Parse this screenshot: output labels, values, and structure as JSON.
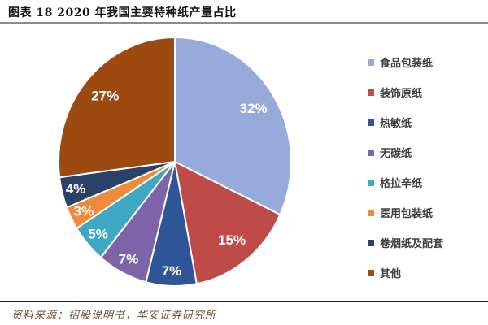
{
  "header": {
    "title": "图表  18 2020 年我国主要特种纸产量占比"
  },
  "footer": {
    "source": "资料来源：招股说明书，华安证券研究所"
  },
  "chart_data": {
    "type": "pie",
    "title": "2020 年我国主要特种纸产量占比",
    "start_angle_deg": 0,
    "direction": "clockwise",
    "legend_position": "right",
    "label_color": "#ffffff",
    "slice_border_color": "#ffffff",
    "slices": [
      {
        "label": "食品包装纸",
        "value": 32,
        "pct_label": "32%",
        "color": "#96abdb"
      },
      {
        "label": "装饰原纸",
        "value": 15,
        "pct_label": "15%",
        "color": "#bf4b48"
      },
      {
        "label": "热敏纸",
        "value": 7,
        "pct_label": "7%",
        "color": "#2e5597"
      },
      {
        "label": "无碳纸",
        "value": 7,
        "pct_label": "7%",
        "color": "#7d64a8"
      },
      {
        "label": "格拉辛纸",
        "value": 5,
        "pct_label": "5%",
        "color": "#3ea7c2"
      },
      {
        "label": "医用包装纸",
        "value": 3,
        "pct_label": "3%",
        "color": "#ee8a3b"
      },
      {
        "label": "卷烟纸及配套",
        "value": 4,
        "pct_label": "4%",
        "color": "#28426c"
      },
      {
        "label": "其他",
        "value": 27,
        "pct_label": "27%",
        "color": "#9d4a10"
      }
    ]
  }
}
